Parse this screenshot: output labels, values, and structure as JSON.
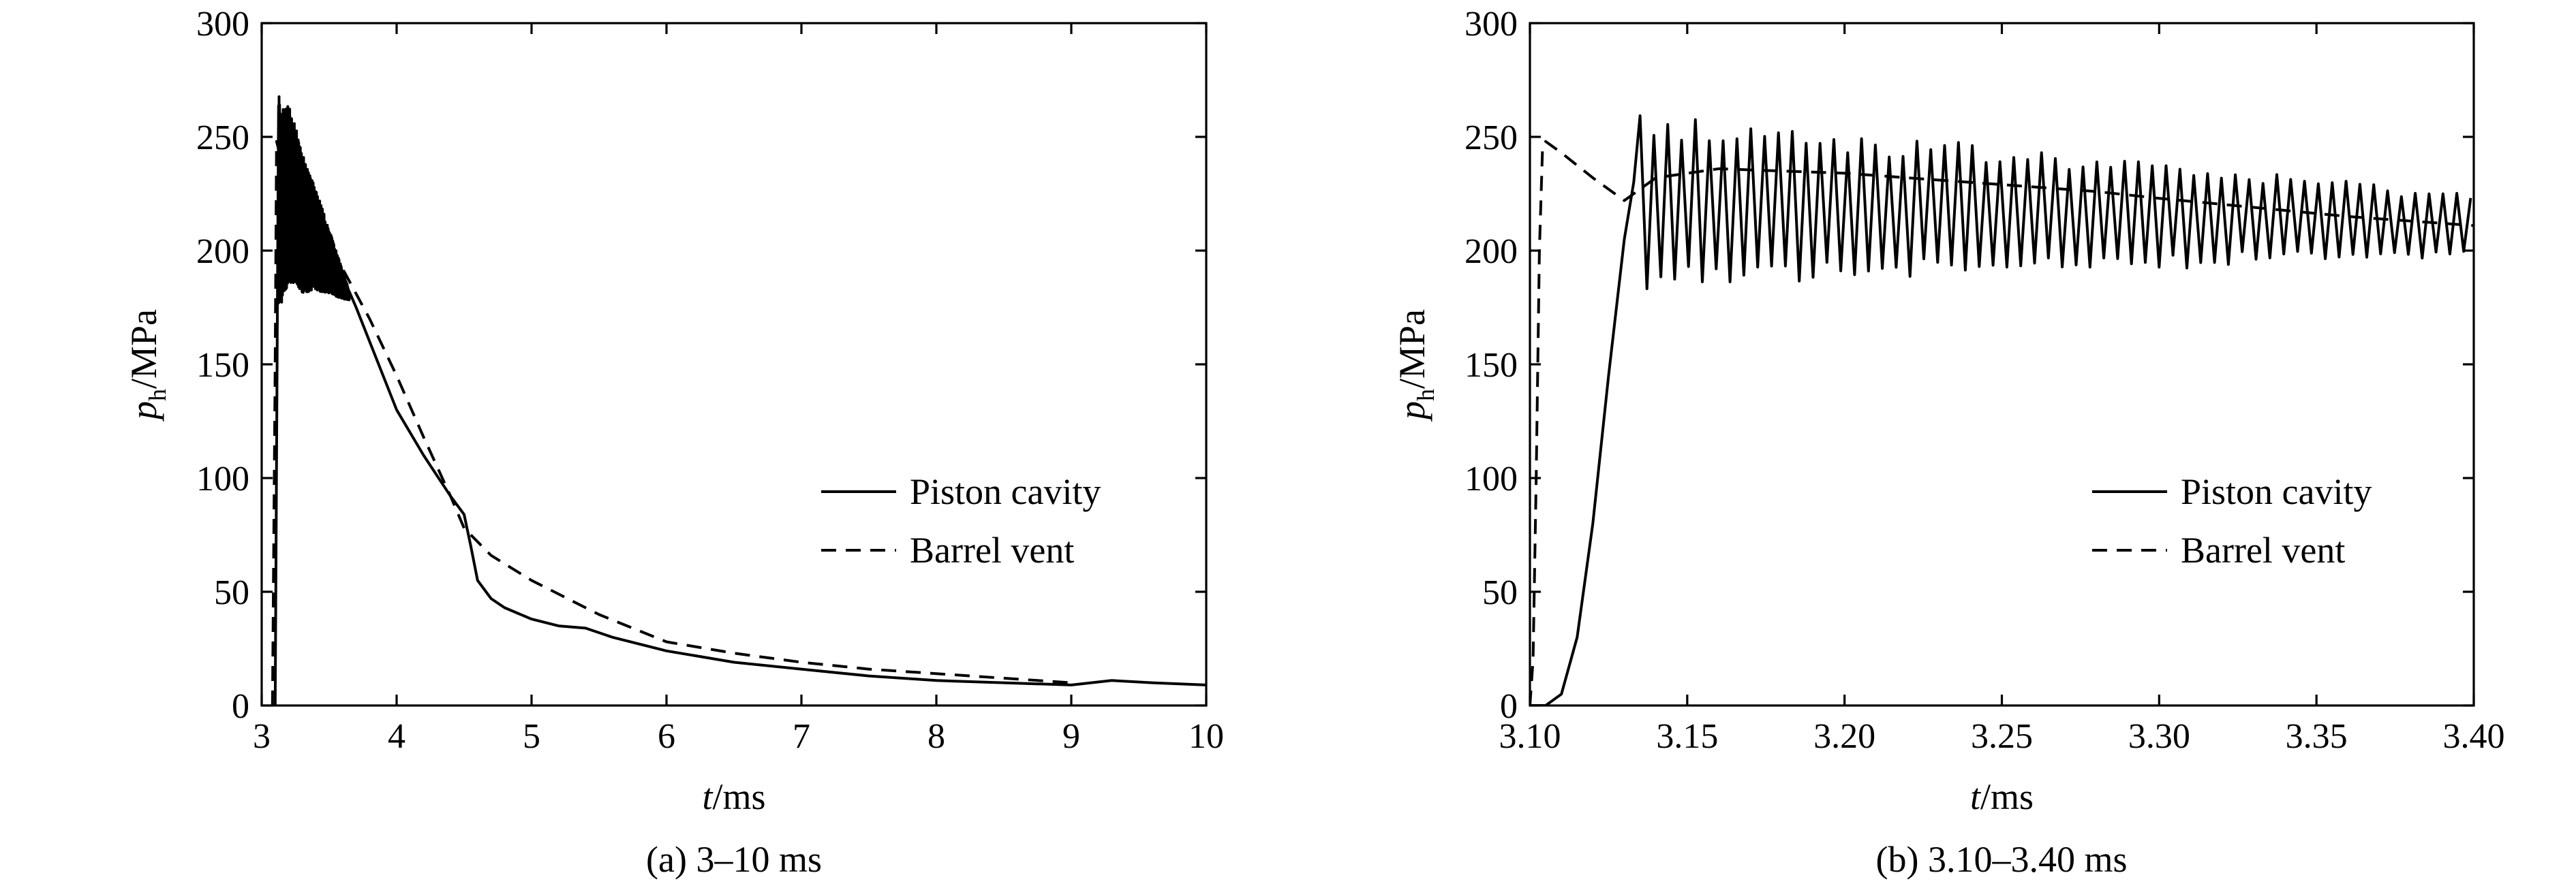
{
  "chart_data": [
    {
      "type": "line",
      "caption": "(a) 3–10 ms",
      "xlabel_italic": "t",
      "xlabel_unit": "/ms",
      "ylabel_italic": "p",
      "ylabel_sub": "h",
      "ylabel_unit": "/MPa",
      "xlim": [
        3,
        10
      ],
      "ylim": [
        0,
        300
      ],
      "xticks": [
        3,
        4,
        5,
        6,
        7,
        8,
        9,
        10
      ],
      "xtick_labels": [
        "3",
        "4",
        "5",
        "6",
        "7",
        "8",
        "9",
        "10"
      ],
      "yticks": [
        0,
        50,
        100,
        150,
        200,
        250,
        300
      ],
      "ytick_labels": [
        "0",
        "50",
        "100",
        "150",
        "200",
        "250",
        "300"
      ],
      "legend_position": "right",
      "series": [
        {
          "name": "Piston cavity",
          "style": "solid",
          "x": [
            3.1,
            3.1,
            3.12,
            3.13,
            3.15,
            3.17,
            3.2,
            3.25,
            3.3,
            3.4,
            3.5,
            3.6,
            3.7,
            3.8,
            3.9,
            4.0,
            4.2,
            4.4,
            4.5,
            4.55,
            4.6,
            4.7,
            4.8,
            5.0,
            5.2,
            5.4,
            5.6,
            6.0,
            6.5,
            7.0,
            7.5,
            8.0,
            8.5,
            9.0,
            9.3,
            9.6,
            10.0
          ],
          "y": [
            0,
            0,
            215,
            225,
            218,
            222,
            225,
            220,
            212,
            205,
            195,
            185,
            175,
            160,
            145,
            130,
            110,
            92,
            84,
            70,
            55,
            47,
            43,
            38,
            35,
            34,
            30,
            24,
            19,
            16,
            13,
            11,
            10,
            9,
            11,
            10,
            9
          ]
        },
        {
          "name": "Barrel vent",
          "style": "dashed",
          "x": [
            3.08,
            3.1,
            3.11,
            3.2,
            3.4,
            3.6,
            3.8,
            4.0,
            4.2,
            4.4,
            4.5,
            4.7,
            5.0,
            5.5,
            6.0,
            6.5,
            7.0,
            7.5,
            8.0,
            8.5,
            9.0
          ],
          "y": [
            0,
            150,
            248,
            228,
            210,
            192,
            170,
            145,
            118,
            92,
            78,
            66,
            55,
            40,
            28,
            23,
            19,
            16,
            14,
            12,
            10
          ]
        }
      ]
    },
    {
      "type": "line",
      "caption": "(b) 3.10–3.40 ms",
      "xlabel_italic": "t",
      "xlabel_unit": "/ms",
      "ylabel_italic": "p",
      "ylabel_sub": "h",
      "ylabel_unit": "/MPa",
      "xlim": [
        3.1,
        3.4
      ],
      "ylim": [
        0,
        300
      ],
      "xticks": [
        3.1,
        3.15,
        3.2,
        3.25,
        3.3,
        3.35,
        3.4
      ],
      "xtick_labels": [
        "3.10",
        "3.15",
        "3.20",
        "3.25",
        "3.30",
        "3.35",
        "3.40"
      ],
      "yticks": [
        0,
        50,
        100,
        150,
        200,
        250,
        300
      ],
      "ytick_labels": [
        "0",
        "50",
        "100",
        "150",
        "200",
        "250",
        "300"
      ],
      "legend_position": "right",
      "series": [
        {
          "name": "Piston cavity",
          "style": "solid",
          "x": [
            3.1,
            3.105,
            3.11,
            3.115,
            3.12,
            3.125,
            3.13,
            3.133
          ],
          "y": [
            0,
            0,
            5,
            30,
            80,
            145,
            205,
            230
          ]
        },
        {
          "name": "Barrel vent",
          "style": "dashed",
          "x": [
            3.1,
            3.101,
            3.102,
            3.103,
            3.104,
            3.105,
            3.11,
            3.12,
            3.13,
            3.14,
            3.16,
            3.18,
            3.2,
            3.22,
            3.25,
            3.28,
            3.3,
            3.33,
            3.36,
            3.4
          ],
          "y": [
            0,
            20,
            100,
            200,
            245,
            248,
            243,
            232,
            222,
            232,
            236,
            235,
            234,
            232,
            229,
            226,
            223,
            219,
            215,
            211
          ]
        }
      ]
    }
  ]
}
